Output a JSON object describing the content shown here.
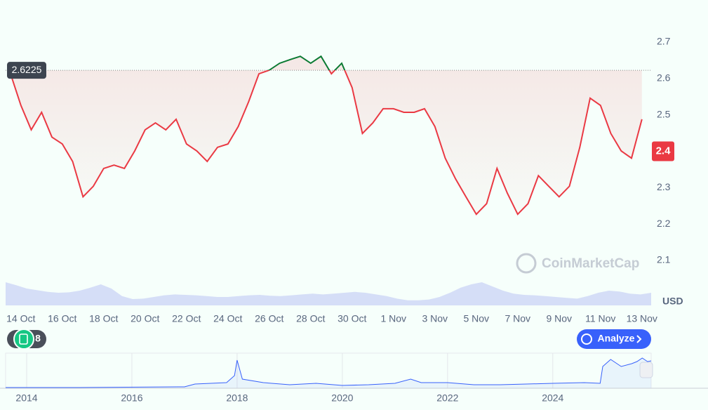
{
  "chart_data": [
    {
      "type": "line",
      "name": "price",
      "categories": [
        null,
        "14 Oct",
        null,
        null,
        null,
        "16 Oct",
        null,
        null,
        null,
        "18 Oct",
        null,
        null,
        null,
        "20 Oct",
        null,
        null,
        null,
        "22 Oct",
        null,
        null,
        null,
        "24 Oct",
        null,
        null,
        null,
        "26 Oct",
        null,
        null,
        null,
        "28 Oct",
        null,
        null,
        null,
        "30 Oct",
        null,
        null,
        null,
        "1 Nov",
        null,
        null,
        null,
        "3 Nov",
        null,
        null,
        null,
        "5 Nov",
        null,
        null,
        null,
        "7 Nov",
        null,
        null,
        null,
        "9 Nov",
        null,
        null,
        null,
        "11 Nov",
        null,
        null,
        null,
        "13 Nov"
      ],
      "values": [
        2.613,
        2.526,
        2.459,
        2.507,
        2.439,
        2.42,
        2.372,
        2.275,
        2.304,
        2.353,
        2.362,
        2.353,
        2.401,
        2.459,
        2.478,
        2.459,
        2.488,
        2.42,
        2.401,
        2.372,
        2.411,
        2.42,
        2.468,
        2.536,
        2.613,
        2.623,
        2.642,
        2.652,
        2.661,
        2.642,
        2.661,
        2.613,
        2.642,
        2.575,
        2.449,
        2.478,
        2.517,
        2.517,
        2.507,
        2.507,
        2.517,
        2.468,
        2.381,
        2.324,
        2.275,
        2.227,
        2.256,
        2.353,
        2.285,
        2.227,
        2.256,
        2.333,
        2.304,
        2.275,
        2.304,
        2.411,
        2.546,
        2.526,
        2.449,
        2.401,
        2.381,
        2.488
      ],
      "color": "#ea3943",
      "color_above": "#0b7a32",
      "reference": 2.6225,
      "last_price": 2.4,
      "ylim": [
        2.1,
        2.7
      ],
      "yticks": [
        2.1,
        2.2,
        2.3,
        2.4,
        2.5,
        2.6,
        2.7
      ],
      "y_unit": "USD"
    },
    {
      "type": "area",
      "name": "volume",
      "color": "#c9d3f5",
      "values": [
        55,
        48,
        40,
        36,
        32,
        30,
        31,
        35,
        42,
        50,
        40,
        22,
        15,
        16,
        20,
        24,
        26,
        25,
        24,
        22,
        20,
        20,
        22,
        24,
        25,
        23,
        22,
        24,
        26,
        28,
        26,
        28,
        30,
        32,
        30,
        26,
        22,
        16,
        12,
        12,
        14,
        20,
        30,
        42,
        50,
        55,
        45,
        35,
        28,
        25,
        24,
        22,
        20,
        18,
        16,
        22,
        30,
        35,
        33,
        28,
        26,
        30
      ],
      "ylim": [
        0,
        100
      ]
    },
    {
      "type": "line",
      "name": "overview",
      "color": "#3861fb",
      "x": [
        2013.6,
        2015,
        2017,
        2017.2,
        2017.8,
        2017.95,
        2018.0,
        2018.1,
        2018.5,
        2019,
        2019.5,
        2020,
        2020.5,
        2021,
        2021.3,
        2021.5,
        2022,
        2022.5,
        2023,
        2023.5,
        2024,
        2024.6,
        2024.9,
        2024.95,
        2025.1,
        2025.3,
        2025.5,
        2025.6,
        2025.7,
        2025.8,
        2025.87
      ],
      "values": [
        0.06,
        0.06,
        0.12,
        0.36,
        0.48,
        1.08,
        2.4,
        0.78,
        0.48,
        0.3,
        0.42,
        0.24,
        0.3,
        0.42,
        0.78,
        0.48,
        0.48,
        0.3,
        0.3,
        0.36,
        0.42,
        0.48,
        0.42,
        1.86,
        2.46,
        1.86,
        2.1,
        2.28,
        2.58,
        2.28,
        2.34
      ],
      "xlim": [
        2013.6,
        2025.87
      ],
      "xticks": [
        2014,
        2016,
        2018,
        2020,
        2022,
        2024
      ],
      "ylim": [
        0,
        3
      ]
    }
  ],
  "ui": {
    "watermark": "CoinMarketCap",
    "analyze_button": "Analyze",
    "notes_badge": "8"
  }
}
